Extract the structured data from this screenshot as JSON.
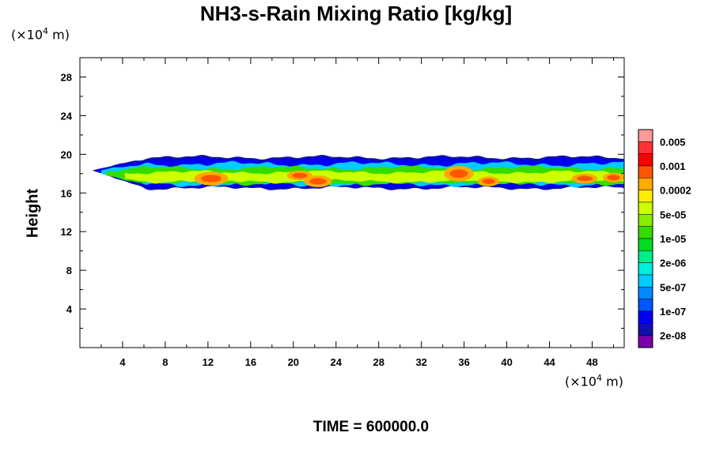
{
  "chart_data": {
    "type": "heatmap",
    "title": "NH3-s-Rain Mixing Ratio [kg/kg]",
    "ylabel": "Height",
    "xlabel": "",
    "x_unit_label": "(×10⁴ m)",
    "y_unit_label": "(×10⁴ m)",
    "footer": "TIME = 600000.0",
    "xlim": [
      0,
      51
    ],
    "ylim": [
      0,
      30
    ],
    "x_ticks": [
      4,
      8,
      12,
      16,
      20,
      24,
      28,
      32,
      36,
      40,
      44,
      48
    ],
    "y_ticks": [
      4,
      8,
      12,
      16,
      20,
      24,
      28
    ],
    "colorbar": {
      "labels": [
        "0.005",
        "0.001",
        "0.0002",
        "5e-05",
        "1e-05",
        "2e-06",
        "5e-07",
        "1e-07",
        "2e-08"
      ],
      "colors": [
        "#ff9999",
        "#ff3333",
        "#ff0000",
        "#ff5500",
        "#ffaa00",
        "#ffee00",
        "#ccff00",
        "#88ee00",
        "#33dd00",
        "#00dd22",
        "#00ee88",
        "#00eedd",
        "#00ccff",
        "#0088ff",
        "#0055ff",
        "#0000ee",
        "#1111aa",
        "#7700aa"
      ]
    },
    "field": {
      "description_levels": [
        "5e-07",
        "1e-05",
        "0.0002",
        "0.001"
      ],
      "layer_y_range": [
        16.3,
        19.9
      ],
      "hotspots_x": [
        12,
        20,
        22,
        35,
        38,
        47,
        50
      ]
    }
  }
}
